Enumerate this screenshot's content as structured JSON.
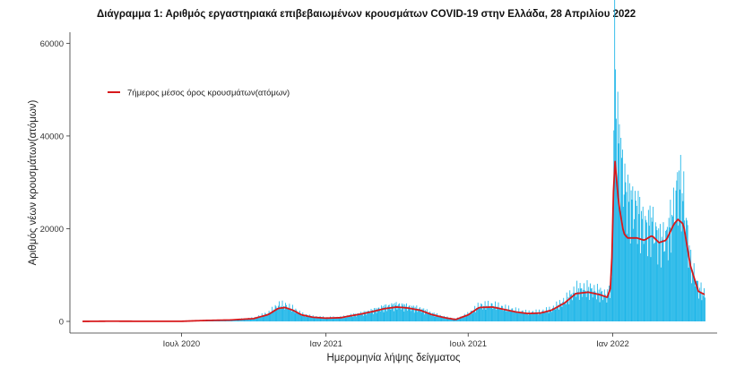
{
  "chart_data": {
    "type": "bar",
    "title": "Διάγραμμα 1: Αριθμός εργαστηριακά επιβεβαιωμένων κρουσμάτων COVID-19 στην Ελλάδα, 28 Απριλίου 2022",
    "xlabel": "Ημερομηνία λήψης δείγματος",
    "ylabel": "Αριθμός νέων κρουσμάτων(ατόμων)",
    "x_range": [
      "2020-02-26",
      "2022-04-28"
    ],
    "ylim": [
      0,
      62000
    ],
    "y_ticks": [
      0,
      20000,
      40000,
      60000
    ],
    "y_tick_labels": [
      "0",
      "20000",
      "40000",
      "60000"
    ],
    "x_ticks": [
      "2020-07-01",
      "2021-01-01",
      "2021-07-01",
      "2022-01-01"
    ],
    "x_tick_labels": [
      "Ιουλ 2020",
      "Ιαν 2021",
      "Ιουλ 2021",
      "Ιαν 2022"
    ],
    "grid": false,
    "legend_position": "top-left",
    "series": [
      {
        "name": "",
        "kind": "bar",
        "color": "#1fb6e8",
        "x": [
          "2020-02-26",
          "2020-04-01",
          "2020-05-01",
          "2020-06-01",
          "2020-07-01",
          "2020-08-01",
          "2020-09-01",
          "2020-10-01",
          "2020-10-20",
          "2020-11-01",
          "2020-11-10",
          "2020-11-20",
          "2020-12-01",
          "2020-12-15",
          "2021-01-01",
          "2021-01-20",
          "2021-02-01",
          "2021-02-15",
          "2021-03-01",
          "2021-03-15",
          "2021-04-01",
          "2021-04-15",
          "2021-05-01",
          "2021-05-15",
          "2021-06-01",
          "2021-06-15",
          "2021-07-01",
          "2021-07-15",
          "2021-08-01",
          "2021-08-15",
          "2021-09-01",
          "2021-09-15",
          "2021-10-01",
          "2021-10-15",
          "2021-11-01",
          "2021-11-15",
          "2021-12-01",
          "2021-12-15",
          "2021-12-25",
          "2021-12-30",
          "2022-01-01",
          "2022-01-03",
          "2022-01-05",
          "2022-01-07",
          "2022-01-10",
          "2022-01-15",
          "2022-01-20",
          "2022-02-01",
          "2022-02-10",
          "2022-02-20",
          "2022-03-01",
          "2022-03-10",
          "2022-03-20",
          "2022-03-25",
          "2022-04-01",
          "2022-04-10",
          "2022-04-20",
          "2022-04-28"
        ],
        "values": [
          10,
          60,
          40,
          30,
          40,
          220,
          320,
          700,
          1800,
          3400,
          3300,
          2600,
          1500,
          1000,
          800,
          900,
          1300,
          1700,
          2300,
          3000,
          3500,
          3100,
          2600,
          1700,
          900,
          500,
          1600,
          3300,
          3400,
          2800,
          2200,
          1800,
          2000,
          2600,
          4400,
          6700,
          6900,
          6200,
          5500,
          9000,
          28000,
          60500,
          44000,
          40000,
          36000,
          30000,
          26000,
          24000,
          20000,
          21000,
          17000,
          18000,
          24000,
          30000,
          26000,
          12000,
          7000,
          5500
        ]
      },
      {
        "name": "7ήμερος μέσος όρος κρουσμάτων(ατόμων)",
        "kind": "line",
        "color": "#d7191c",
        "x": [
          "2020-02-26",
          "2020-04-01",
          "2020-05-01",
          "2020-06-01",
          "2020-07-01",
          "2020-08-01",
          "2020-09-01",
          "2020-10-01",
          "2020-10-20",
          "2020-11-01",
          "2020-11-10",
          "2020-11-20",
          "2020-12-01",
          "2020-12-15",
          "2021-01-01",
          "2021-01-20",
          "2021-02-01",
          "2021-02-15",
          "2021-03-01",
          "2021-03-15",
          "2021-04-01",
          "2021-04-15",
          "2021-05-01",
          "2021-05-15",
          "2021-06-01",
          "2021-06-15",
          "2021-07-01",
          "2021-07-15",
          "2021-08-01",
          "2021-08-15",
          "2021-09-01",
          "2021-09-15",
          "2021-10-01",
          "2021-10-15",
          "2021-11-01",
          "2021-11-15",
          "2021-12-01",
          "2021-12-15",
          "2021-12-25",
          "2021-12-30",
          "2022-01-01",
          "2022-01-03",
          "2022-01-05",
          "2022-01-07",
          "2022-01-10",
          "2022-01-15",
          "2022-01-20",
          "2022-02-01",
          "2022-02-10",
          "2022-02-20",
          "2022-03-01",
          "2022-03-10",
          "2022-03-20",
          "2022-03-25",
          "2022-04-01",
          "2022-04-10",
          "2022-04-20",
          "2022-04-28"
        ],
        "values": [
          5,
          50,
          30,
          20,
          30,
          200,
          300,
          600,
          1500,
          2800,
          3000,
          2400,
          1400,
          900,
          700,
          800,
          1200,
          1600,
          2100,
          2700,
          3100,
          2900,
          2400,
          1500,
          800,
          400,
          1400,
          3000,
          3100,
          2600,
          2000,
          1700,
          1800,
          2400,
          4000,
          6000,
          6300,
          5800,
          5200,
          7500,
          20000,
          36000,
          33000,
          28000,
          24000,
          19000,
          18000,
          18000,
          17500,
          18500,
          17000,
          17500,
          21000,
          22000,
          21000,
          12000,
          6500,
          5800
        ]
      }
    ]
  }
}
